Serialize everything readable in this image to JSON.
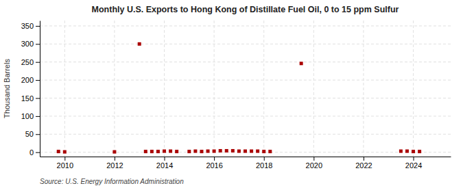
{
  "chart_data": {
    "type": "scatter",
    "title": "Monthly U.S. Exports to Hong Kong of Distillate Fuel Oil, 0 to 15 ppm Sulfur",
    "y_label": "Thousand Barrels",
    "annotations": [
      "Source: U.S. Energy Information Administration"
    ],
    "x": [
      2009.75,
      2010.0,
      2012.0,
      2013.0,
      2013.25,
      2013.5,
      2013.75,
      2014.0,
      2014.25,
      2014.5,
      2015.0,
      2015.25,
      2015.5,
      2015.75,
      2016.0,
      2016.25,
      2016.5,
      2016.75,
      2017.0,
      2017.25,
      2017.5,
      2017.75,
      2018.0,
      2018.25,
      2019.5,
      2023.5,
      2023.75,
      2024.0,
      2024.25
    ],
    "values": [
      2,
      1,
      1,
      300,
      2,
      2,
      2,
      3,
      3,
      2,
      2,
      3,
      2,
      3,
      3,
      4,
      4,
      4,
      3,
      3,
      3,
      3,
      2,
      2,
      246,
      3,
      3,
      2,
      2
    ],
    "color": "#aa0000",
    "marker": "square",
    "xlim": [
      2009.0,
      2025.5
    ],
    "ylim": [
      -12,
      365
    ],
    "xticks": [
      2010,
      2012,
      2014,
      2016,
      2018,
      2020,
      2022,
      2024
    ],
    "yticks": [
      0,
      50,
      100,
      150,
      200,
      250,
      300,
      350
    ],
    "grid": true
  }
}
